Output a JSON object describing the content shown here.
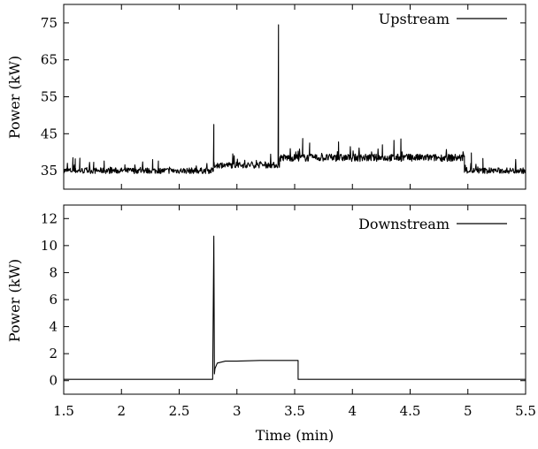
{
  "chart_data": [
    {
      "type": "line",
      "ylabel": "Power (kW)",
      "xlim": [
        1.5,
        5.5
      ],
      "ylim": [
        30,
        80
      ],
      "yticks": [
        "35",
        "45",
        "55",
        "65",
        "75"
      ],
      "yticks_values": [
        35,
        45,
        55,
        65,
        75
      ],
      "legend_position": "top-right",
      "series": [
        {
          "name": "Upstream",
          "color": "#000000",
          "segments": [
            {
              "x": [
                1.5,
                2.8
              ],
              "base": 35,
              "noise": 0.8
            },
            {
              "x": [
                2.8,
                3.37
              ],
              "base": 36.5,
              "noise": 0.8
            },
            {
              "x": [
                3.37,
                4.97
              ],
              "base": 38.5,
              "noise": 1.0
            },
            {
              "x": [
                4.97,
                5.5
              ],
              "base": 35,
              "noise": 0.8
            }
          ],
          "spikes": [
            [
              1.58,
              38.5
            ],
            [
              1.6,
              38.2
            ],
            [
              1.64,
              38.4
            ],
            [
              1.76,
              37.3
            ],
            [
              1.85,
              37.6
            ],
            [
              2.03,
              36.6
            ],
            [
              2.27,
              38
            ],
            [
              2.32,
              37.6
            ],
            [
              2.8,
              47.5
            ],
            [
              3.36,
              74.5
            ],
            [
              3.57,
              43.7
            ],
            [
              3.63,
              42.5
            ],
            [
              3.88,
              42.8
            ],
            [
              4.26,
              42
            ],
            [
              4.36,
              43.2
            ],
            [
              4.42,
              43.6
            ],
            [
              5.03,
              39.8
            ],
            [
              5.13,
              38.3
            ]
          ]
        }
      ]
    },
    {
      "type": "line",
      "xlabel": "Time (min)",
      "ylabel": "Power (kW)",
      "xlim": [
        1.5,
        5.5
      ],
      "ylim": [
        -1,
        13
      ],
      "xticks": [
        "1.5",
        "2",
        "2.5",
        "3",
        "3.5",
        "4",
        "4.5",
        "5",
        "5.5"
      ],
      "xticks_values": [
        1.5,
        2,
        2.5,
        3,
        3.5,
        4,
        4.5,
        5,
        5.5
      ],
      "yticks": [
        "0",
        "2",
        "4",
        "6",
        "8",
        "10",
        "12"
      ],
      "yticks_values": [
        0,
        2,
        4,
        6,
        8,
        10,
        12
      ],
      "legend_position": "top-right",
      "series": [
        {
          "name": "Downstream",
          "color": "#000000",
          "x": [
            1.5,
            2.79,
            2.8,
            2.805,
            2.81,
            2.83,
            2.9,
            3.0,
            3.2,
            3.53,
            3.53,
            5.5
          ],
          "y": [
            0.1,
            0.1,
            10.7,
            0.5,
            0.9,
            1.3,
            1.45,
            1.45,
            1.5,
            1.5,
            0.1,
            0.1
          ]
        }
      ]
    }
  ]
}
